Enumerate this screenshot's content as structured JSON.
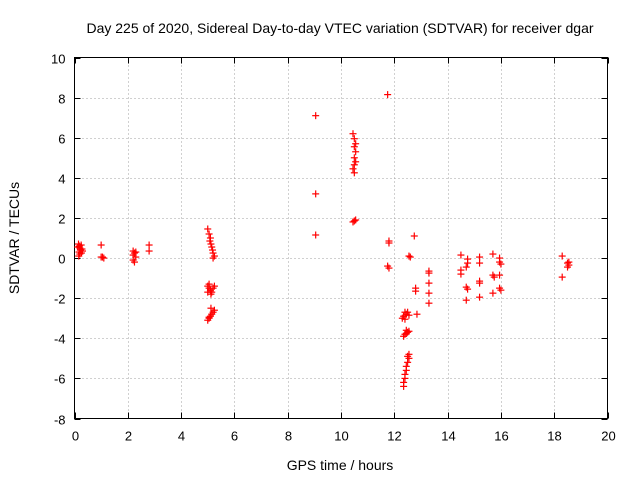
{
  "chart_data": {
    "type": "scatter",
    "title": "Day 225 of 2020, Sidereal Day-to-day VTEC variation (SDTVAR) for receiver dgar",
    "xlabel": "GPS time / hours",
    "ylabel": "SDTVAR / TECUs",
    "xlim": [
      0,
      20
    ],
    "ylim": [
      -8,
      10
    ],
    "xticks": [
      0,
      2,
      4,
      6,
      8,
      10,
      12,
      14,
      16,
      18,
      20
    ],
    "yticks": [
      -8,
      -6,
      -4,
      -2,
      0,
      2,
      4,
      6,
      8,
      10
    ],
    "grid": true,
    "marker": "+",
    "color": "#ff0000",
    "series": [
      {
        "name": "SDTVAR",
        "points": [
          [
            0.15,
            0.7
          ],
          [
            0.18,
            0.6
          ],
          [
            0.2,
            0.5
          ],
          [
            0.22,
            0.4
          ],
          [
            0.17,
            0.3
          ],
          [
            0.2,
            0.2
          ],
          [
            0.16,
            0.1
          ],
          [
            0.25,
            0.65
          ],
          [
            0.28,
            0.45
          ],
          [
            0.12,
            0.55
          ],
          [
            0.3,
            0.35
          ],
          [
            0.26,
            0.25
          ],
          [
            1.0,
            0.65
          ],
          [
            1.0,
            0.05
          ],
          [
            1.1,
            0.0
          ],
          [
            1.05,
            0.05
          ],
          [
            2.2,
            0.35
          ],
          [
            2.25,
            0.25
          ],
          [
            2.2,
            0.15
          ],
          [
            2.3,
            0.05
          ],
          [
            2.2,
            -0.1
          ],
          [
            2.25,
            -0.2
          ],
          [
            2.3,
            0.3
          ],
          [
            2.8,
            0.65
          ],
          [
            2.8,
            0.35
          ],
          [
            5.0,
            1.45
          ],
          [
            5.05,
            1.2
          ],
          [
            5.1,
            1.0
          ],
          [
            5.08,
            0.85
          ],
          [
            5.12,
            0.7
          ],
          [
            5.15,
            0.55
          ],
          [
            5.18,
            0.4
          ],
          [
            5.2,
            0.25
          ],
          [
            5.25,
            0.1
          ],
          [
            5.2,
            0.0
          ],
          [
            5.0,
            -1.4
          ],
          [
            5.05,
            -1.5
          ],
          [
            5.1,
            -1.6
          ],
          [
            5.15,
            -1.7
          ],
          [
            5.2,
            -1.5
          ],
          [
            5.25,
            -1.4
          ],
          [
            5.05,
            -1.3
          ],
          [
            5.12,
            -1.8
          ],
          [
            5.0,
            -1.7
          ],
          [
            5.0,
            -3.1
          ],
          [
            5.05,
            -3.0
          ],
          [
            5.1,
            -2.9
          ],
          [
            5.15,
            -2.8
          ],
          [
            5.2,
            -2.7
          ],
          [
            5.25,
            -2.6
          ],
          [
            5.12,
            -2.5
          ],
          [
            5.05,
            -2.95
          ],
          [
            9.05,
            7.1
          ],
          [
            9.05,
            3.2
          ],
          [
            9.05,
            1.15
          ],
          [
            10.45,
            6.2
          ],
          [
            10.5,
            5.95
          ],
          [
            10.55,
            5.7
          ],
          [
            10.5,
            5.55
          ],
          [
            10.55,
            5.3
          ],
          [
            10.5,
            5.0
          ],
          [
            10.55,
            4.8
          ],
          [
            10.5,
            4.65
          ],
          [
            10.45,
            4.45
          ],
          [
            10.5,
            4.25
          ],
          [
            10.45,
            1.8
          ],
          [
            10.55,
            1.9
          ],
          [
            10.5,
            1.85
          ],
          [
            11.75,
            8.15
          ],
          [
            11.8,
            0.85
          ],
          [
            11.8,
            0.75
          ],
          [
            11.75,
            -0.4
          ],
          [
            11.8,
            -0.5
          ],
          [
            12.4,
            -2.7
          ],
          [
            12.45,
            -2.8
          ],
          [
            12.35,
            -2.9
          ],
          [
            12.3,
            -3.0
          ],
          [
            12.5,
            -2.7
          ],
          [
            12.55,
            -2.85
          ],
          [
            12.4,
            -3.05
          ],
          [
            12.45,
            -3.6
          ],
          [
            12.5,
            -3.7
          ],
          [
            12.4,
            -3.8
          ],
          [
            12.35,
            -3.9
          ],
          [
            12.55,
            -3.65
          ],
          [
            12.45,
            -3.75
          ],
          [
            12.55,
            -4.8
          ],
          [
            12.55,
            -5.0
          ],
          [
            12.5,
            -5.2
          ],
          [
            12.45,
            -5.4
          ],
          [
            12.45,
            -5.6
          ],
          [
            12.4,
            -5.8
          ],
          [
            12.4,
            -6.0
          ],
          [
            12.35,
            -6.2
          ],
          [
            12.35,
            -6.4
          ],
          [
            12.5,
            -4.9
          ],
          [
            12.55,
            0.1
          ],
          [
            12.6,
            0.05
          ],
          [
            12.75,
            1.1
          ],
          [
            12.8,
            -1.5
          ],
          [
            12.8,
            -1.65
          ],
          [
            12.85,
            -2.8
          ],
          [
            13.3,
            -0.65
          ],
          [
            13.3,
            -0.75
          ],
          [
            13.3,
            -1.25
          ],
          [
            13.3,
            -1.75
          ],
          [
            13.3,
            -2.25
          ],
          [
            14.5,
            0.15
          ],
          [
            14.5,
            -0.6
          ],
          [
            14.5,
            -0.8
          ],
          [
            14.75,
            -0.05
          ],
          [
            14.75,
            -0.25
          ],
          [
            14.7,
            -0.45
          ],
          [
            14.7,
            -1.45
          ],
          [
            14.75,
            -1.55
          ],
          [
            14.7,
            -2.1
          ],
          [
            15.2,
            0.05
          ],
          [
            15.2,
            -0.25
          ],
          [
            15.2,
            -1.15
          ],
          [
            15.2,
            -1.25
          ],
          [
            15.2,
            -1.95
          ],
          [
            15.7,
            0.2
          ],
          [
            15.7,
            -0.85
          ],
          [
            15.75,
            -0.95
          ],
          [
            15.7,
            -1.75
          ],
          [
            15.95,
            0.0
          ],
          [
            15.95,
            -0.2
          ],
          [
            16.0,
            -0.3
          ],
          [
            15.95,
            -0.85
          ],
          [
            15.95,
            -1.5
          ],
          [
            16.0,
            -1.6
          ],
          [
            18.3,
            0.1
          ],
          [
            18.3,
            -0.95
          ],
          [
            18.5,
            -0.25
          ],
          [
            18.55,
            -0.35
          ],
          [
            18.5,
            -0.45
          ],
          [
            18.55,
            -0.2
          ]
        ]
      }
    ]
  }
}
